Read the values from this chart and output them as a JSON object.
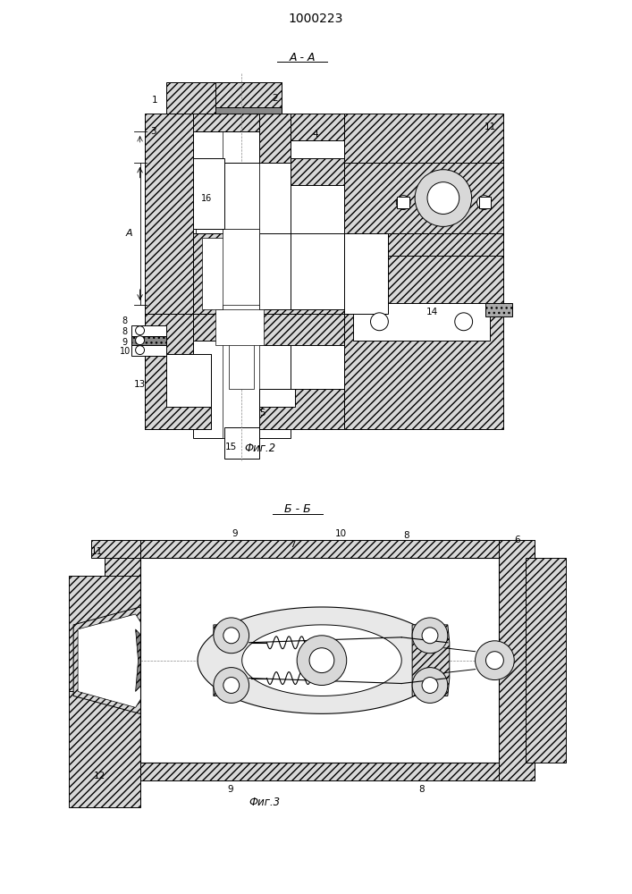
{
  "title": "1000223",
  "bg_color": "#ffffff",
  "line_color": "#000000",
  "hatch_color": "#555555",
  "fig1_label": "А - А",
  "fig2_label": "Б - Б",
  "fig1_caption": "Фиг.2",
  "fig2_caption": "Фиг.3",
  "hc": "#d0d0d0",
  "lw": 0.7
}
